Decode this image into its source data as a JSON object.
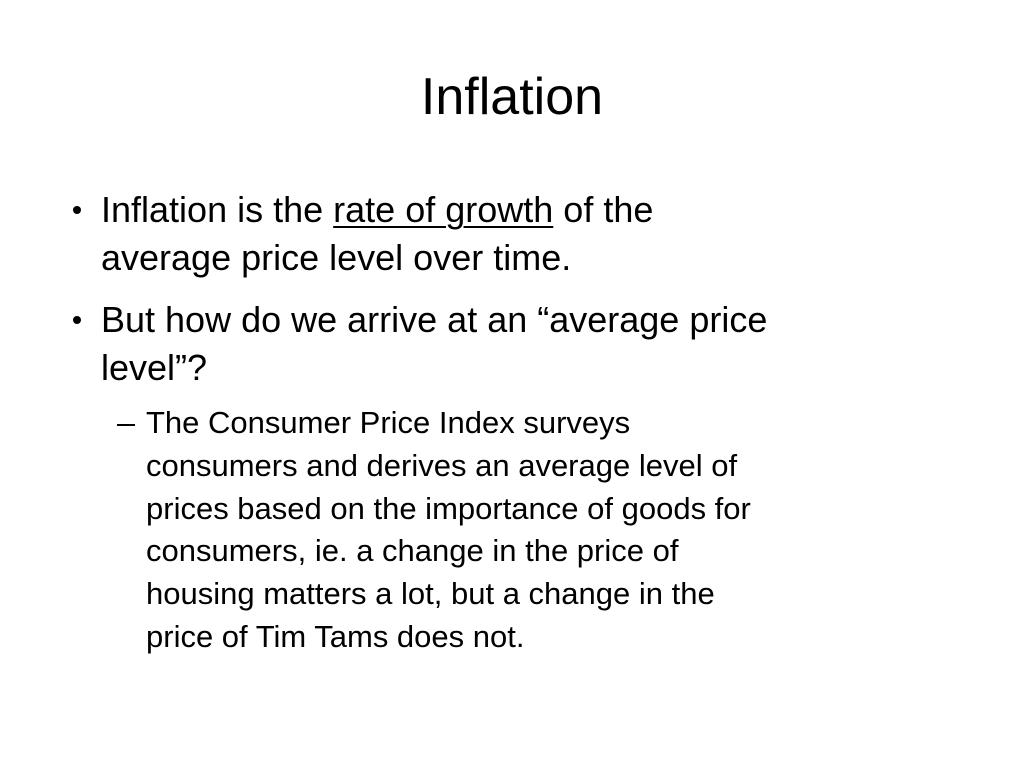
{
  "title": "Inflation",
  "bullets": [
    {
      "lines": [
        [
          "Inflation is the",
          "rate of growth",
          "of the"
        ],
        [
          "average price level over time."
        ]
      ]
    },
    {
      "lines": [
        [
          "But how do we arrive at an “average price"
        ],
        [
          "level”?"
        ]
      ],
      "sub_bullets": [
        {
          "lines": [
            "The Consumer Price Index surveys",
            "consumers and derives an average level of",
            "prices based on the importance of goods for",
            "consumers, ie. a change in the price of",
            "housing matters a lot, but a change in the",
            "price of Tim Tams does not."
          ]
        }
      ]
    }
  ]
}
